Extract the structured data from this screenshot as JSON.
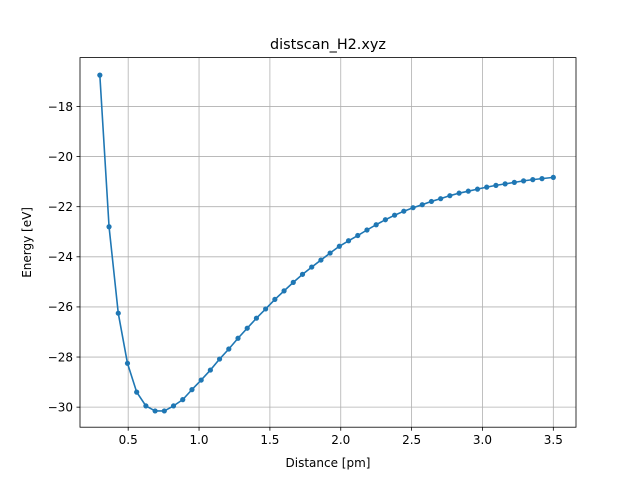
{
  "chart_data": {
    "type": "line",
    "title": "distscan_H2.xyz",
    "xlabel": "Distance [pm]",
    "ylabel": "Energy [eV]",
    "xlim": [
      0.16,
      3.66
    ],
    "ylim": [
      -30.8,
      -16.05
    ],
    "xticks": [
      0.5,
      1.0,
      1.5,
      2.0,
      2.5,
      3.0,
      3.5
    ],
    "xtick_labels": [
      "0.5",
      "1.0",
      "1.5",
      "2.0",
      "2.5",
      "3.0",
      "3.5"
    ],
    "yticks": [
      -30,
      -28,
      -26,
      -24,
      -22,
      -20,
      -18
    ],
    "ytick_labels": [
      "−30",
      "−28",
      "−26",
      "−24",
      "−22",
      "−20",
      "−18"
    ],
    "grid": true,
    "series": [
      {
        "name": "distscan_H2.xyz",
        "color": "#1f77b4",
        "marker": "circle",
        "x": [
          0.3,
          0.365,
          0.43,
          0.495,
          0.56,
          0.625,
          0.69,
          0.755,
          0.82,
          0.885,
          0.95,
          1.015,
          1.08,
          1.145,
          1.21,
          1.275,
          1.34,
          1.405,
          1.47,
          1.535,
          1.6,
          1.665,
          1.73,
          1.795,
          1.86,
          1.925,
          1.99,
          2.055,
          2.12,
          2.185,
          2.25,
          2.315,
          2.38,
          2.445,
          2.51,
          2.575,
          2.64,
          2.705,
          2.77,
          2.835,
          2.9,
          2.965,
          3.03,
          3.095,
          3.16,
          3.225,
          3.29,
          3.355,
          3.42,
          3.5
        ],
        "y": [
          -16.75,
          -22.8,
          -26.25,
          -28.25,
          -29.4,
          -29.95,
          -30.15,
          -30.15,
          -29.95,
          -29.7,
          -29.3,
          -28.92,
          -28.52,
          -28.08,
          -27.68,
          -27.25,
          -26.85,
          -26.45,
          -26.08,
          -25.7,
          -25.36,
          -25.02,
          -24.7,
          -24.41,
          -24.13,
          -23.85,
          -23.58,
          -23.36,
          -23.15,
          -22.93,
          -22.72,
          -22.52,
          -22.34,
          -22.18,
          -22.04,
          -21.92,
          -21.79,
          -21.68,
          -21.56,
          -21.46,
          -21.38,
          -21.3,
          -21.22,
          -21.15,
          -21.09,
          -21.03,
          -20.97,
          -20.92,
          -20.88,
          -20.83
        ]
      }
    ]
  }
}
